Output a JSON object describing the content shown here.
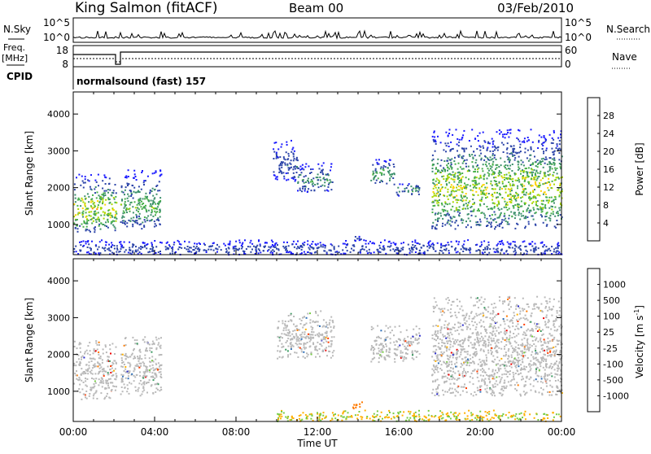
{
  "header": {
    "station": "King Salmon (fitACF)",
    "beam": "Beam 00",
    "date": "03/Feb/2010"
  },
  "top_panels": {
    "nsky_label": "N.Sky",
    "nsky_ticks": [
      "10^5",
      "10^0"
    ],
    "nsearch_label": "N.Search",
    "nsearch_ticks": [
      "10^5",
      "10^0"
    ],
    "freq_label_line1": "Freq.",
    "freq_label_line2": "[MHz]",
    "freq_ticks": [
      "18",
      "8"
    ],
    "nave_label": "Nave",
    "nave_ticks": [
      "60",
      "0"
    ],
    "cpid_label": "CPID",
    "cpid_text": "normalsound (fast) 157"
  },
  "colors": {
    "power_scale": [
      "#1a1aff",
      "#2c44a8",
      "#3c8f6b",
      "#48b04a",
      "#a8d800",
      "#ffd200",
      "#ff9200",
      "#ff5a00",
      "#ff1600"
    ],
    "velocity_scale": [
      "#2a2acc",
      "#2e6fb8",
      "#3a9a60",
      "#77cc44",
      "#b9b9b9",
      "#c8c8c8",
      "#ffb000",
      "#ff7a00",
      "#ff3c00",
      "#ee0000"
    ]
  },
  "chart_data": [
    {
      "type": "heatmap",
      "panel": "power",
      "ylabel": "Slant Range [km]",
      "xlabel": "",
      "x_ticks": [
        "00:00",
        "04:00",
        "08:00",
        "12:00",
        "16:00",
        "20:00",
        "00:00"
      ],
      "xlim_hours": [
        0,
        24
      ],
      "y_ticks": [
        "1000",
        "2000",
        "3000",
        "4000"
      ],
      "ylim": [
        180,
        4600
      ],
      "colorbar": {
        "label": "Power [dB]",
        "ticks": [
          "4",
          "8",
          "12",
          "16",
          "20",
          "24",
          "28"
        ],
        "range": [
          0,
          30
        ]
      },
      "echo_regions": [
        {
          "t": [
            0.0,
            2.1
          ],
          "r": [
            800,
            2400
          ],
          "peak": 22
        },
        {
          "t": [
            2.3,
            4.3
          ],
          "r": [
            900,
            2500
          ],
          "peak": 14
        },
        {
          "t": [
            9.8,
            11.0
          ],
          "r": [
            2200,
            3300
          ],
          "peak": 6
        },
        {
          "t": [
            11.0,
            12.8
          ],
          "r": [
            1900,
            2700
          ],
          "peak": 11
        },
        {
          "t": [
            14.6,
            15.8
          ],
          "r": [
            2100,
            2800
          ],
          "peak": 14
        },
        {
          "t": [
            15.8,
            17.0
          ],
          "r": [
            1800,
            2200
          ],
          "peak": 12
        },
        {
          "t": [
            17.6,
            24.0
          ],
          "r": [
            900,
            3600
          ],
          "peak": 20
        },
        {
          "t": [
            13.7,
            14.2
          ],
          "r": [
            550,
            750
          ],
          "peak": 6
        },
        {
          "t": [
            0.0,
            24.0
          ],
          "r": [
            200,
            600
          ],
          "peak": 5
        }
      ]
    },
    {
      "type": "heatmap",
      "panel": "velocity",
      "ylabel": "Slant Range [km]",
      "xlabel": "Time UT",
      "x_ticks": [
        "00:00",
        "04:00",
        "08:00",
        "12:00",
        "16:00",
        "20:00",
        "00:00"
      ],
      "xlim_hours": [
        0,
        24
      ],
      "y_ticks": [
        "1000",
        "2000",
        "3000",
        "4000"
      ],
      "ylim": [
        180,
        4600
      ],
      "colorbar": {
        "label": "Velocity [m s",
        "label_sup": "-1",
        "label_tail": "]",
        "ticks": [
          "1000",
          "500",
          "100",
          "25",
          "-25",
          "-100",
          "-500",
          "-1000"
        ]
      },
      "echo_regions": [
        {
          "t": [
            0.0,
            2.1
          ],
          "r": [
            800,
            2400
          ],
          "v": 0
        },
        {
          "t": [
            2.3,
            4.3
          ],
          "r": [
            900,
            2500
          ],
          "v": 0
        },
        {
          "t": [
            10.0,
            12.8
          ],
          "r": [
            1900,
            3200
          ],
          "v": 0
        },
        {
          "t": [
            14.6,
            17.0
          ],
          "r": [
            1800,
            2800
          ],
          "v": 0
        },
        {
          "t": [
            17.6,
            24.0
          ],
          "r": [
            900,
            3600
          ],
          "v": 0
        },
        {
          "t": [
            13.7,
            14.2
          ],
          "r": [
            550,
            750
          ],
          "v": -200
        },
        {
          "t": [
            10.0,
            24.0
          ],
          "r": [
            200,
            500
          ],
          "v": -60
        }
      ]
    }
  ]
}
